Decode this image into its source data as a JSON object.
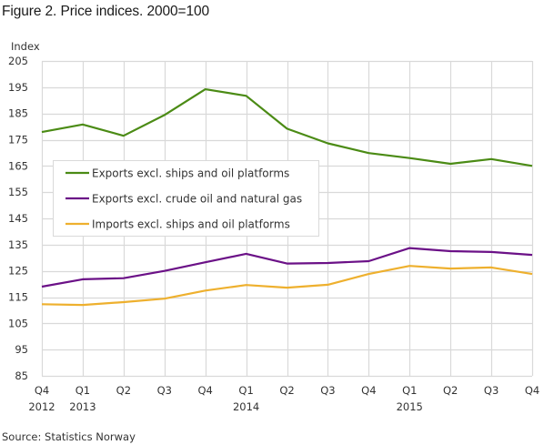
{
  "chart_data": {
    "type": "line",
    "title": "Figure 2. Price indices. 2000=100",
    "xlabel": "",
    "ylabel": "Index",
    "ylim": [
      85,
      205
    ],
    "yticks": [
      85,
      95,
      105,
      115,
      125,
      135,
      145,
      155,
      165,
      175,
      185,
      195,
      205
    ],
    "grid": true,
    "legend_position": "inside-left-middle",
    "categories": [
      "Q4 2012",
      "Q1 2013",
      "Q2 2013",
      "Q3 2013",
      "Q4 2013",
      "Q1 2014",
      "Q2 2014",
      "Q3 2014",
      "Q4 2014",
      "Q1 2015",
      "Q2 2015",
      "Q3 2015",
      "Q4 2015"
    ],
    "tick_labels": [
      {
        "quarter": "Q4",
        "year": "2012"
      },
      {
        "quarter": "Q1",
        "year": "2013"
      },
      {
        "quarter": "Q2",
        "year": ""
      },
      {
        "quarter": "Q3",
        "year": ""
      },
      {
        "quarter": "Q4",
        "year": ""
      },
      {
        "quarter": "Q1",
        "year": "2014"
      },
      {
        "quarter": "Q2",
        "year": ""
      },
      {
        "quarter": "Q3",
        "year": ""
      },
      {
        "quarter": "Q4",
        "year": ""
      },
      {
        "quarter": "Q1",
        "year": "2015"
      },
      {
        "quarter": "Q2",
        "year": ""
      },
      {
        "quarter": "Q3",
        "year": ""
      },
      {
        "quarter": "Q4",
        "year": ""
      }
    ],
    "series": [
      {
        "name": "Exports excl. ships and oil platforms",
        "color": "#4b8b15",
        "values": [
          177.9,
          180.8,
          176.5,
          184.4,
          194.2,
          191.7,
          179.2,
          173.6,
          169.9,
          168.0,
          165.8,
          167.6,
          165.0
        ]
      },
      {
        "name": "Exports excl. crude oil and natural gas",
        "color": "#6b1187",
        "values": [
          119.0,
          121.8,
          122.2,
          125.0,
          128.3,
          131.5,
          127.8,
          128.0,
          128.7,
          133.7,
          132.5,
          132.2,
          131.1
        ]
      },
      {
        "name": "Imports excl. ships and oil platforms",
        "color": "#eeb02e",
        "values": [
          112.3,
          112.0,
          113.1,
          114.4,
          117.5,
          119.6,
          118.6,
          119.7,
          123.8,
          126.9,
          125.9,
          126.3,
          123.8
        ]
      }
    ]
  },
  "header": {
    "title": "Figure 2. Price indices. 2000=100"
  },
  "axis": {
    "ylabel": "Index"
  },
  "footer": {
    "source": "Source: Statistics Norway"
  },
  "colors": {
    "grid": "#d9d9d9",
    "legend_border": "#d9d9d9"
  }
}
